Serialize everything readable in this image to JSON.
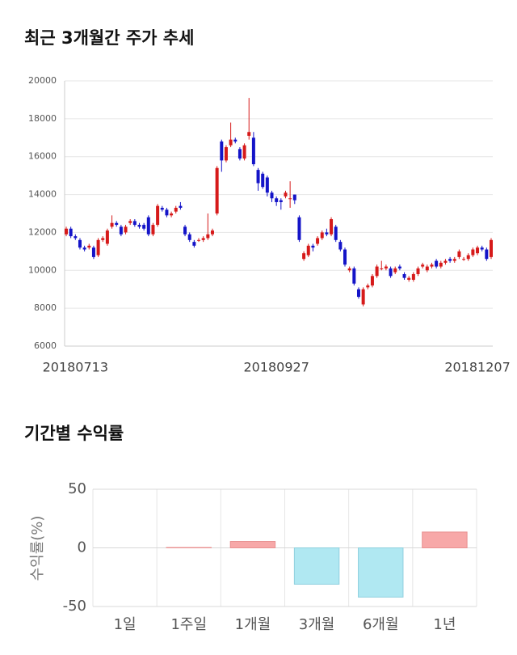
{
  "chart_data": [
    {
      "type": "candlestick",
      "title": "최근 3개월간 주가 추세",
      "categories": [
        null,
        null,
        "20180713",
        null,
        null,
        null,
        null,
        null,
        null,
        null,
        null,
        null,
        null,
        null,
        null,
        null,
        null,
        null,
        null,
        null,
        null,
        null,
        null,
        null,
        null,
        null,
        null,
        null,
        null,
        null,
        null,
        null,
        null,
        null,
        null,
        null,
        null,
        null,
        null,
        null,
        null,
        null,
        null,
        null,
        null,
        null,
        "20180927",
        null,
        null,
        null,
        null,
        null,
        null,
        null,
        null,
        null,
        null,
        null,
        null,
        null,
        null,
        null,
        null,
        null,
        null,
        null,
        null,
        null,
        null,
        null,
        null,
        null,
        null,
        null,
        null,
        null,
        null,
        null,
        null,
        null,
        null,
        null,
        null,
        null,
        null,
        null,
        null,
        null,
        null,
        null,
        "20181207",
        null,
        null,
        null
      ],
      "open": [
        11900,
        12200,
        11800,
        11600,
        11200,
        11200,
        11200,
        10800,
        11600,
        11400,
        12300,
        12500,
        12300,
        12000,
        12500,
        12600,
        12400,
        12400,
        12800,
        11900,
        12400,
        13300,
        13200,
        12900,
        13100,
        13400,
        12300,
        11900,
        11500,
        11600,
        11600,
        11700,
        11900,
        13000,
        16800,
        15800,
        16600,
        16900,
        16400,
        15900,
        17100,
        17000,
        15300,
        15100,
        14900,
        14100,
        13800,
        13700,
        13900,
        13800,
        14000,
        12800,
        10600,
        10800,
        11300,
        11400,
        11700,
        12000,
        11900,
        12300,
        11500,
        11100,
        10000,
        10100,
        9000,
        8200,
        9100,
        9200,
        9700,
        10100,
        10100,
        10100,
        9900,
        10200,
        9800,
        9500,
        9500,
        9800,
        10200,
        10000,
        10200,
        10500,
        10200,
        10400,
        10600,
        10500,
        10700,
        10600,
        10600,
        10800,
        10900,
        11200,
        11100,
        10700
      ],
      "high": [
        12300,
        12300,
        11900,
        11700,
        11300,
        11400,
        11300,
        11700,
        11800,
        12200,
        12900,
        12600,
        12400,
        12400,
        12700,
        12700,
        12500,
        12500,
        12900,
        12500,
        13500,
        13400,
        13300,
        13100,
        13400,
        13600,
        12400,
        12000,
        11600,
        11700,
        11800,
        13000,
        12200,
        15500,
        16900,
        16600,
        17800,
        17000,
        16500,
        16700,
        19100,
        17300,
        15400,
        15200,
        15000,
        14200,
        13900,
        13800,
        14200,
        14700,
        14000,
        12900,
        11000,
        11400,
        11400,
        11800,
        12100,
        12200,
        12800,
        12400,
        11600,
        11200,
        10200,
        10200,
        9100,
        9100,
        9300,
        9800,
        10300,
        10500,
        10300,
        10200,
        10200,
        10300,
        9900,
        9700,
        9900,
        10200,
        10400,
        10300,
        10400,
        10600,
        10500,
        10600,
        10700,
        10700,
        11100,
        10700,
        10900,
        11200,
        11300,
        11300,
        11200,
        11700
      ],
      "low": [
        11800,
        11700,
        11600,
        11100,
        11000,
        11100,
        10600,
        10700,
        11500,
        11300,
        12200,
        12300,
        11800,
        11900,
        12400,
        12300,
        12200,
        12100,
        11800,
        11800,
        12300,
        13100,
        12800,
        12800,
        13000,
        13200,
        11800,
        11500,
        11200,
        11500,
        11500,
        11600,
        11800,
        12900,
        15200,
        15700,
        16500,
        16700,
        15800,
        15800,
        16900,
        15500,
        14200,
        14300,
        13900,
        13600,
        13400,
        13200,
        13800,
        13300,
        13500,
        11500,
        10500,
        10700,
        11000,
        11300,
        11600,
        11800,
        11800,
        11500,
        11000,
        10200,
        9900,
        9200,
        8500,
        8100,
        9000,
        9100,
        9600,
        10000,
        10000,
        9600,
        9800,
        10000,
        9500,
        9400,
        9400,
        9700,
        10100,
        9900,
        10100,
        10100,
        10100,
        10300,
        10400,
        10400,
        10600,
        10500,
        10500,
        10700,
        10800,
        11000,
        10500,
        10600
      ],
      "close": [
        12200,
        11800,
        11700,
        11200,
        11100,
        11300,
        10700,
        11600,
        11700,
        12100,
        12500,
        12400,
        11900,
        12300,
        12600,
        12400,
        12300,
        12200,
        11900,
        12400,
        13400,
        13200,
        12900,
        13000,
        13300,
        13300,
        11900,
        11600,
        11300,
        11600,
        11700,
        11900,
        12100,
        15400,
        15800,
        16500,
        16900,
        16800,
        15900,
        16600,
        17300,
        15600,
        14600,
        14400,
        14100,
        13800,
        13600,
        13600,
        14100,
        13800,
        13700,
        11600,
        10900,
        11300,
        11200,
        11700,
        12000,
        11900,
        12700,
        11600,
        11100,
        10300,
        10100,
        9300,
        8600,
        9000,
        9200,
        9700,
        10200,
        10100,
        10200,
        9700,
        10100,
        10100,
        9600,
        9600,
        9800,
        10100,
        10300,
        10200,
        10300,
        10200,
        10400,
        10500,
        10500,
        10600,
        11000,
        10600,
        10800,
        11100,
        11200,
        11100,
        10600,
        11600
      ],
      "up_color": "#d61a1a",
      "down_color": "#1414c8",
      "ylim": [
        6000,
        20000
      ],
      "yticks": [
        6000,
        8000,
        10000,
        12000,
        14000,
        16000,
        18000,
        20000
      ],
      "grid": true
    },
    {
      "type": "bar",
      "title": "기간별 수익률",
      "y_label": "수익률(%)",
      "categories": [
        "1일",
        "1주일",
        "1개월",
        "3개월",
        "6개월",
        "1년"
      ],
      "values": [
        0,
        0.3,
        5.5,
        -31,
        -42,
        13.5
      ],
      "positive_color": "#f7a8a8",
      "negative_color": "#b0e8f2",
      "ylim": [
        -50,
        50
      ],
      "yticks": [
        -50,
        0,
        50
      ],
      "grid": true
    }
  ]
}
